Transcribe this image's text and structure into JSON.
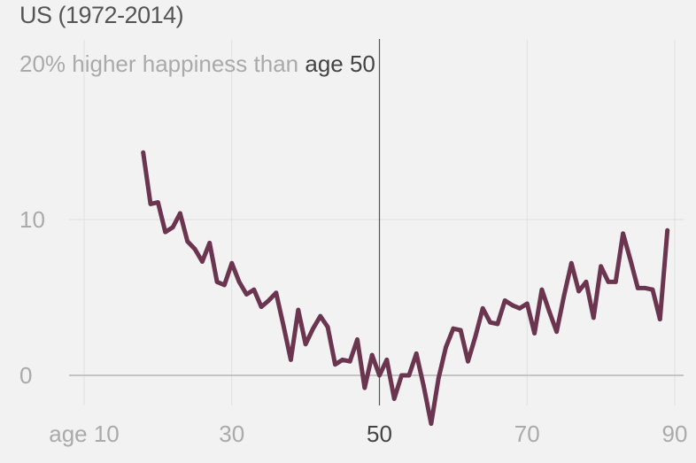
{
  "chart_data": {
    "type": "line",
    "title": "US (1972-2014)",
    "top_tick_label_prefix": "20% higher happiness than",
    "reference_label": "age 50",
    "reference_x": 50,
    "xlim": [
      5,
      90
    ],
    "ylim": [
      -3,
      21
    ],
    "x_ticks": [
      {
        "value": 10,
        "label": "age 10"
      },
      {
        "value": 30,
        "label": "30"
      },
      {
        "value": 50,
        "label": "50"
      },
      {
        "value": 70,
        "label": "70"
      },
      {
        "value": 90,
        "label": "90"
      }
    ],
    "y_ticks": [
      {
        "value": 0,
        "label": "0"
      },
      {
        "value": 10,
        "label": "10"
      },
      {
        "value": 20,
        "label": "20%"
      }
    ],
    "grid": true,
    "series": [
      {
        "color": "#6b3550",
        "x": [
          18,
          19,
          20,
          21,
          22,
          23,
          24,
          25,
          26,
          27,
          28,
          29,
          30,
          31,
          32,
          33,
          34,
          35,
          36,
          37,
          38,
          39,
          40,
          41,
          42,
          43,
          44,
          45,
          46,
          47,
          48,
          49,
          50,
          51,
          52,
          53,
          54,
          55,
          56,
          57,
          58,
          59,
          60,
          61,
          62,
          63,
          64,
          65,
          66,
          67,
          68,
          69,
          70,
          71,
          72,
          73,
          74,
          75,
          76,
          77,
          78,
          79,
          80,
          81,
          82,
          83,
          84,
          85,
          86,
          87,
          88,
          89
        ],
        "y": [
          14.3,
          11.0,
          11.1,
          9.2,
          9.5,
          10.4,
          8.6,
          8.1,
          7.3,
          8.5,
          6.0,
          5.8,
          7.2,
          6.0,
          5.2,
          5.5,
          4.4,
          4.8,
          5.3,
          3.2,
          1.0,
          4.2,
          2.0,
          3.0,
          3.8,
          3.1,
          0.7,
          1.0,
          0.9,
          2.3,
          -0.8,
          1.3,
          0.0,
          1.0,
          -1.5,
          0.0,
          0.0,
          1.4,
          -0.7,
          -3.1,
          -0.2,
          1.8,
          3.0,
          2.9,
          0.9,
          2.5,
          4.3,
          3.4,
          3.3,
          4.8,
          4.5,
          4.3,
          4.6,
          2.7,
          5.5,
          4.1,
          2.8,
          5.1,
          7.2,
          5.4,
          6.0,
          3.7,
          7.0,
          6.0,
          6.0,
          9.1,
          7.4,
          5.6,
          5.6,
          5.5,
          3.6,
          9.3
        ]
      }
    ]
  }
}
